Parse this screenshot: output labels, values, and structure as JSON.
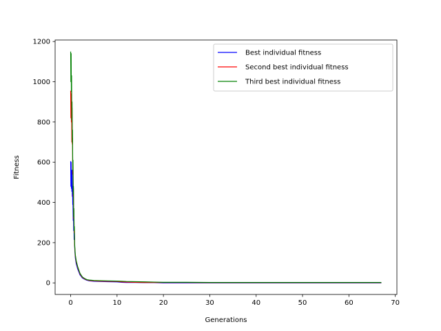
{
  "chart_data": {
    "type": "line",
    "xlabel": "Generations",
    "ylabel": "Fitness",
    "xlim": [
      -3.35,
      70.35
    ],
    "ylim": [
      -57.5,
      1207.5
    ],
    "xticks": [
      0,
      10,
      20,
      30,
      40,
      50,
      60,
      70
    ],
    "yticks": [
      0,
      200,
      400,
      600,
      800,
      1000,
      1200
    ],
    "grid": false,
    "legend_position": "top-right",
    "series": [
      {
        "name": "Best individual fitness",
        "color": "#0000ff",
        "x": [
          0,
          0.05,
          0.1,
          0.15,
          0.2,
          0.25,
          0.3,
          0.35,
          0.4,
          0.45,
          0.5,
          0.55,
          0.6,
          0.65,
          0.7,
          0.75,
          0.8,
          0.85,
          0.9,
          1,
          1.2,
          1.5,
          2,
          2.5,
          3,
          3.5,
          4,
          5,
          6,
          8,
          10,
          11,
          12,
          14,
          16,
          18,
          20,
          25,
          30,
          40,
          50,
          60,
          67
        ],
        "y": [
          605,
          480,
          600,
          470,
          560,
          455,
          560,
          430,
          480,
          390,
          390,
          310,
          350,
          260,
          290,
          215,
          240,
          190,
          160,
          125,
          95,
          70,
          40,
          25,
          18,
          13,
          10,
          8,
          7,
          6,
          5,
          3,
          2,
          2,
          1,
          1,
          0,
          0,
          0,
          0,
          0,
          0,
          0
        ]
      },
      {
        "name": "Second best individual fitness",
        "color": "#ff0000",
        "x": [
          0,
          0.05,
          0.1,
          0.15,
          0.2,
          0.25,
          0.3,
          0.35,
          0.4,
          0.45,
          0.5,
          0.55,
          0.6,
          0.65,
          0.7,
          0.75,
          0.8,
          0.85,
          0.9,
          1,
          1.2,
          1.5,
          2,
          2.5,
          3,
          3.5,
          4,
          5,
          6,
          8,
          10,
          11,
          12,
          14,
          16,
          18,
          20,
          25,
          30,
          40,
          50,
          60,
          67
        ],
        "y": [
          955,
          820,
          940,
          800,
          880,
          700,
          870,
          690,
          720,
          540,
          600,
          430,
          470,
          320,
          360,
          250,
          270,
          190,
          170,
          135,
          105,
          78,
          45,
          28,
          20,
          15,
          12,
          10,
          9,
          8,
          7,
          5,
          4,
          3,
          2,
          2,
          2,
          2,
          1,
          1,
          1,
          1,
          1
        ]
      },
      {
        "name": "Third best individual fitness",
        "color": "#008000",
        "x": [
          0,
          0.05,
          0.1,
          0.15,
          0.2,
          0.25,
          0.3,
          0.35,
          0.4,
          0.45,
          0.5,
          0.55,
          0.6,
          0.65,
          0.7,
          0.75,
          0.8,
          0.85,
          0.9,
          1,
          1.2,
          1.5,
          2,
          2.5,
          3,
          3.5,
          4,
          5,
          6,
          8,
          10,
          11,
          12,
          14,
          16,
          18,
          20,
          25,
          30,
          40,
          50,
          60,
          67
        ],
        "y": [
          1150,
          1000,
          1140,
          950,
          1030,
          810,
          900,
          700,
          760,
          560,
          610,
          440,
          480,
          330,
          370,
          260,
          280,
          200,
          175,
          140,
          110,
          82,
          48,
          30,
          22,
          16,
          14,
          12,
          11,
          10,
          9,
          8,
          7,
          6,
          5,
          4,
          3,
          3,
          2,
          2,
          2,
          2,
          2
        ]
      }
    ]
  }
}
